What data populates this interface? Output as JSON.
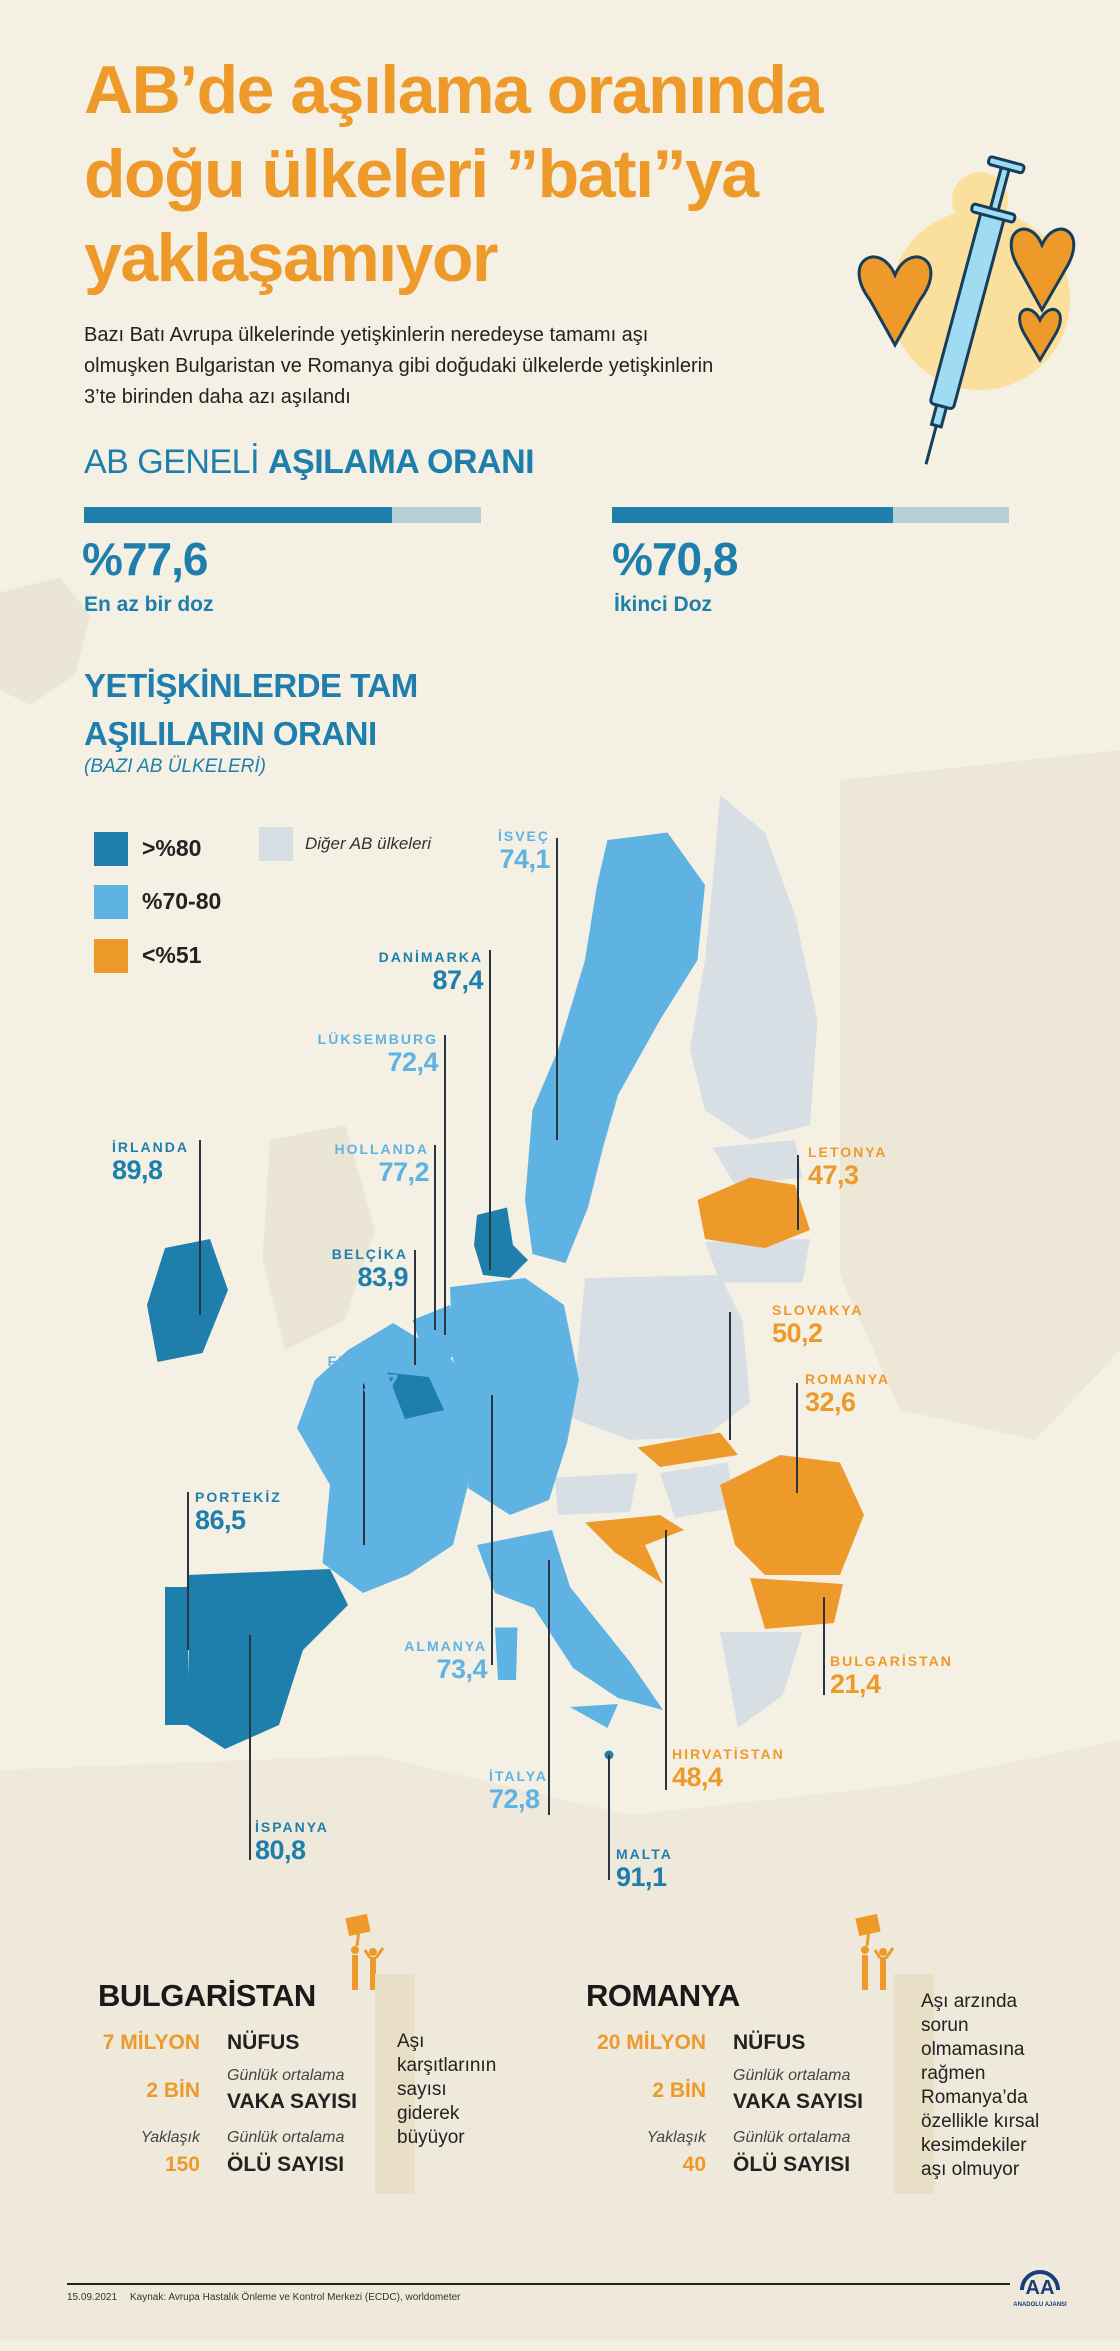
{
  "title": {
    "lines": [
      "AB’de aşılama oranında",
      "doğu ülkeleri ”batı”ya",
      "yaklaşamıyor"
    ]
  },
  "description": {
    "lines": [
      "Bazı Batı Avrupa ülkelerinde yetişkinlerin neredeyse tamamı aşı",
      "olmuşken Bulgaristan ve Romanya gibi doğudaki ülkelerde yetişkinlerin",
      "3’te birinden daha azı aşılandı"
    ]
  },
  "eu_rate": {
    "heading_light": "AB GENELİ",
    "heading_bold": "AŞILAMA ORANI",
    "stats": [
      {
        "value": "%77,6",
        "label": "En az bir doz",
        "percent": 77.6
      },
      {
        "value": "%70,8",
        "label": "İkinci Doz",
        "percent": 70.8
      }
    ]
  },
  "map_section": {
    "title_line1": "YETİŞKİNLERDE TAM",
    "title_line2": "AŞILILARIN ORANI",
    "subtitle": "(BAZI AB ÜLKELERİ)",
    "legend": [
      {
        "label": ">%80",
        "color": "#1f7fac"
      },
      {
        "label": "%70-80",
        "color": "#5fb3e3"
      },
      {
        "label": "<%51",
        "color": "#ee9a2a"
      },
      {
        "label": "Diğer AB ülkeleri",
        "color": "#d8dfe4"
      }
    ],
    "countries": {
      "isvec": {
        "name": "İSVEÇ",
        "value": "74,1"
      },
      "danimarka": {
        "name": "DANİMARKA",
        "value": "87,4"
      },
      "luksemburg": {
        "name": "LÜKSEMBURG",
        "value": "72,4"
      },
      "hollanda": {
        "name": "HOLLANDA",
        "value": "77,2"
      },
      "belcika": {
        "name": "BELÇİKA",
        "value": "83,9"
      },
      "fransa": {
        "name": "FRANSA",
        "value": "79,7"
      },
      "irlanda": {
        "name": "İRLANDA",
        "value": "89,8"
      },
      "portekiz": {
        "name": "PORTEKİZ",
        "value": "86,5"
      },
      "almanya": {
        "name": "ALMANYA",
        "value": "73,4"
      },
      "italya": {
        "name": "İTALYA",
        "value": "72,8"
      },
      "ispanya": {
        "name": "İSPANYA",
        "value": "80,8"
      },
      "malta": {
        "name": "MALTA",
        "value": "91,1"
      },
      "hirvatistan": {
        "name": "HIRVATİSTAN",
        "value": "48,4"
      },
      "bulgaristan": {
        "name": "BULGARİSTAN",
        "value": "21,4"
      },
      "romanya": {
        "name": "ROMANYA",
        "value": "32,6"
      },
      "slovakya": {
        "name": "SLOVAKYA",
        "value": "50,2"
      },
      "letonya": {
        "name": "LETONYA",
        "value": "47,3"
      }
    }
  },
  "panels": [
    {
      "country": "BULGARİSTAN",
      "population_value": "7 MİLYON",
      "population_label": "NÜFUS",
      "cases_note": "Günlük ortalama",
      "cases_value": "2 BİN",
      "cases_label": "VAKA SAYISI",
      "deaths_prefix": "Yaklaşık",
      "deaths_note": "Günlük ortalama",
      "deaths_value": "150",
      "deaths_label": "ÖLÜ SAYISI",
      "note_lines": [
        "Aşı",
        "karşıtlarının",
        "sayısı",
        "giderek",
        "büyüyor"
      ]
    },
    {
      "country": "ROMANYA",
      "population_value": "20 MİLYON",
      "population_label": "NÜFUS",
      "cases_note": "Günlük ortalama",
      "cases_value": "2 BİN",
      "cases_label": "VAKA SAYISI",
      "deaths_prefix": "Yaklaşık",
      "deaths_note": "Günlük ortalama",
      "deaths_value": "40",
      "deaths_label": "ÖLÜ SAYISI",
      "note_lines": [
        "Aşı arzında",
        "sorun",
        "olmamasına",
        "rağmen",
        "Romanya’da",
        "özellikle kırsal",
        "kesimdekiler",
        "aşı olmuyor"
      ]
    }
  ],
  "footer": {
    "date": "15.09.2021",
    "source": "Kaynak: Avrupa Hastalık Önleme ve Kontrol Merkezi (ECDC), worldometer",
    "logo_text": "ANADOLU AJANSI"
  },
  "colors": {
    "accent": "#ee9a2a",
    "dark_blue": "#1f7fac",
    "light_blue": "#5fb3e3",
    "other_eu": "#d8dfe4",
    "background": "#f5f0e4"
  }
}
